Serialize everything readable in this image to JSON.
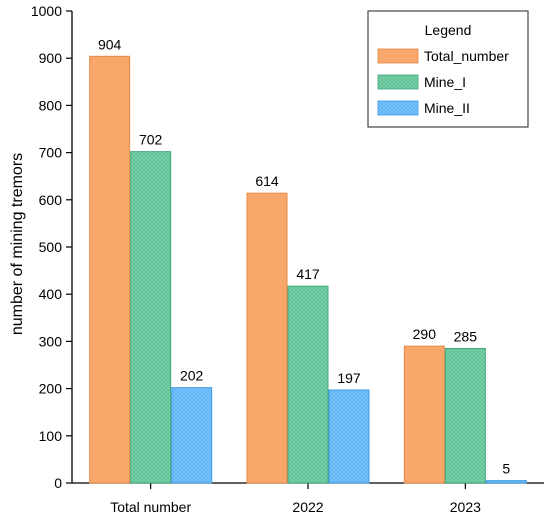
{
  "chart_data": {
    "type": "bar",
    "title": "",
    "xlabel": "",
    "ylabel": "number of mining tremors",
    "categories": [
      "Total number",
      "2022",
      "2023"
    ],
    "series": [
      {
        "name": "Total_number",
        "values": [
          904,
          614,
          290
        ],
        "color": "#F9A15F",
        "hatch": "#F7B07A",
        "stroke": "#E58A48"
      },
      {
        "name": "Mine_I",
        "values": [
          702,
          417,
          285
        ],
        "color": "#5EC194",
        "hatch": "#84D2AE",
        "stroke": "#3FA878"
      },
      {
        "name": "Mine_II",
        "values": [
          202,
          197,
          5
        ],
        "color": "#5AB3F7",
        "hatch": "#86C8FA",
        "stroke": "#3E9BE4"
      }
    ],
    "ylim": [
      0,
      1000
    ],
    "yticks": [
      0,
      100,
      200,
      300,
      400,
      500,
      600,
      700,
      800,
      900,
      1000
    ],
    "legend": {
      "title": "Legend",
      "position": "top-right"
    },
    "grid": false
  }
}
